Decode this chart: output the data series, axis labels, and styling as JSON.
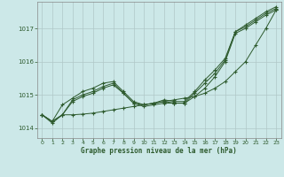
{
  "title": "Graphe pression niveau de la mer (hPa)",
  "bg_color": "#cce8e8",
  "grid_color": "#b0c8c8",
  "line_color": "#2d5a2d",
  "ylim": [
    1013.7,
    1017.8
  ],
  "xlim": [
    -0.5,
    23.5
  ],
  "yticks": [
    1014,
    1015,
    1016,
    1017
  ],
  "xticks": [
    0,
    1,
    2,
    3,
    4,
    5,
    6,
    7,
    8,
    9,
    10,
    11,
    12,
    13,
    14,
    15,
    16,
    17,
    18,
    19,
    20,
    21,
    22,
    23
  ],
  "series": [
    [
      1014.4,
      1014.2,
      1014.4,
      1014.8,
      1014.95,
      1015.05,
      1015.2,
      1015.3,
      1015.05,
      1014.75,
      1014.7,
      1014.75,
      1014.8,
      1014.75,
      1014.75,
      1014.95,
      1015.2,
      1015.55,
      1016.0,
      1016.85,
      1017.0,
      1017.2,
      1017.4,
      1017.55
    ],
    [
      1014.4,
      1014.2,
      1014.7,
      1014.9,
      1015.1,
      1015.2,
      1015.35,
      1015.4,
      1015.1,
      1014.8,
      1014.7,
      1014.75,
      1014.85,
      1014.8,
      1014.8,
      1015.1,
      1015.45,
      1015.75,
      1016.1,
      1016.9,
      1017.1,
      1017.3,
      1017.5,
      1017.65
    ],
    [
      1014.4,
      1014.2,
      1014.4,
      1014.85,
      1015.0,
      1015.1,
      1015.25,
      1015.35,
      1015.05,
      1014.75,
      1014.65,
      1014.7,
      1014.75,
      1014.75,
      1014.75,
      1015.05,
      1015.35,
      1015.65,
      1016.05,
      1016.9,
      1017.05,
      1017.25,
      1017.45,
      1017.6
    ],
    [
      1014.4,
      1014.15,
      1014.4,
      1014.4,
      1014.42,
      1014.45,
      1014.5,
      1014.55,
      1014.6,
      1014.65,
      1014.7,
      1014.75,
      1014.8,
      1014.85,
      1014.9,
      1014.95,
      1015.05,
      1015.2,
      1015.4,
      1015.7,
      1016.0,
      1016.5,
      1017.0,
      1017.55
    ]
  ]
}
